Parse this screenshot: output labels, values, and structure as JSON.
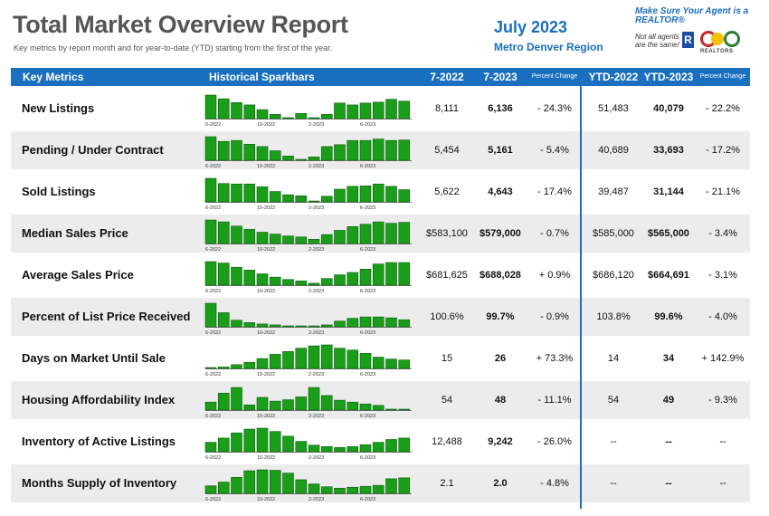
{
  "header": {
    "title": "Total Market Overview Report",
    "subtitle": "Key metrics by report month and for year-to-date (YTD) starting from the first of the year.",
    "month": "July 2023",
    "region": "Metro Denver Region"
  },
  "logo": {
    "slogan": "Make Sure Your Agent is a REALTOR®",
    "note": "Not all agents are the same!",
    "mark": "R",
    "name": "REALTORS"
  },
  "colors": {
    "accent": "#1a6fc0",
    "bar": "#1a9e1a",
    "row_shade": "#ececec"
  },
  "columns": {
    "metric": "Key Metrics",
    "sparkbars": "Historical Sparkbars",
    "cur_prev": "7-2022",
    "cur": "7-2023",
    "cur_change": "Percent Change",
    "ytd_prev": "YTD-2022",
    "ytd": "YTD-2023",
    "ytd_change": "Percent Change"
  },
  "spark_ticks": [
    "6-2022",
    "10-2022",
    "2-2023",
    "6-2023"
  ],
  "rows": [
    {
      "metric": "New Listings",
      "v2022": "8,111",
      "v2023": "6,136",
      "pct": "- 24.3%",
      "ytd2022": "51,483",
      "ytd2023": "40,079",
      "ytdpct": "- 22.2%",
      "bars": [
        1.0,
        0.84,
        0.68,
        0.58,
        0.38,
        0.18,
        0.04,
        0.22,
        0.0,
        0.18,
        0.66,
        0.58,
        0.66,
        0.7,
        0.82,
        0.74
      ]
    },
    {
      "metric": "Pending / Under Contract",
      "v2022": "5,454",
      "v2023": "5,161",
      "pct": "- 5.4%",
      "ytd2022": "40,689",
      "ytd2023": "33,693",
      "ytdpct": "- 17.2%",
      "bars": [
        1.0,
        0.8,
        0.84,
        0.68,
        0.58,
        0.4,
        0.18,
        0.02,
        0.14,
        0.58,
        0.66,
        0.84,
        0.84,
        0.9,
        0.84,
        0.86
      ]
    },
    {
      "metric": "Sold Listings",
      "v2022": "5,622",
      "v2023": "4,643",
      "pct": "- 17.4%",
      "ytd2022": "39,487",
      "ytd2023": "31,144",
      "ytdpct": "- 21.1%",
      "bars": [
        1.0,
        0.78,
        0.76,
        0.76,
        0.64,
        0.44,
        0.3,
        0.26,
        0.0,
        0.24,
        0.54,
        0.66,
        0.68,
        0.76,
        0.66,
        0.52
      ]
    },
    {
      "metric": "Median Sales Price",
      "v2022": "$583,100",
      "v2023": "$579,000",
      "pct": "- 0.7%",
      "ytd2022": "$585,000",
      "ytd2023": "$565,000",
      "ytdpct": "- 3.4%",
      "bars": [
        1.0,
        0.92,
        0.74,
        0.6,
        0.48,
        0.4,
        0.32,
        0.28,
        0.18,
        0.38,
        0.56,
        0.72,
        0.82,
        0.92,
        0.86,
        0.9
      ]
    },
    {
      "metric": "Average Sales Price",
      "v2022": "$681,625",
      "v2023": "$688,028",
      "pct": "+ 0.9%",
      "ytd2022": "$686,120",
      "ytd2023": "$664,691",
      "ytdpct": "- 3.1%",
      "bars": [
        1.0,
        0.94,
        0.76,
        0.64,
        0.48,
        0.34,
        0.24,
        0.18,
        0.08,
        0.28,
        0.44,
        0.54,
        0.68,
        0.9,
        0.96,
        0.96
      ]
    },
    {
      "metric": "Percent of List Price Received",
      "v2022": "100.6%",
      "v2023": "99.7%",
      "pct": "- 0.9%",
      "ytd2022": "103.8%",
      "ytd2023": "99.6%",
      "ytdpct": "- 4.0%",
      "bars": [
        1.0,
        0.6,
        0.28,
        0.18,
        0.12,
        0.08,
        0.04,
        0.0,
        0.0,
        0.08,
        0.24,
        0.36,
        0.42,
        0.42,
        0.38,
        0.3
      ]
    },
    {
      "metric": "Days on Market Until Sale",
      "v2022": "15",
      "v2023": "26",
      "pct": "+ 73.3%",
      "ytd2022": "14",
      "ytd2023": "34",
      "ytdpct": "+ 142.9%",
      "bars": [
        0.0,
        0.06,
        0.16,
        0.26,
        0.42,
        0.6,
        0.72,
        0.86,
        0.96,
        1.0,
        0.86,
        0.78,
        0.64,
        0.48,
        0.4,
        0.36
      ]
    },
    {
      "metric": "Housing Affordability Index",
      "v2022": "54",
      "v2023": "48",
      "pct": "- 11.1%",
      "ytd2022": "54",
      "ytd2023": "49",
      "ytdpct": "- 9.3%",
      "bars": [
        0.34,
        0.72,
        0.96,
        0.22,
        0.54,
        0.38,
        0.44,
        0.56,
        0.96,
        0.62,
        0.42,
        0.34,
        0.26,
        0.2,
        0.04,
        0.02
      ]
    },
    {
      "metric": "Inventory of Active Listings",
      "v2022": "12,488",
      "v2023": "9,242",
      "pct": "- 26.0%",
      "ytd2022": "--",
      "ytd2023": "--",
      "ytdpct": "--",
      "bars": [
        0.4,
        0.58,
        0.8,
        0.96,
        1.0,
        0.86,
        0.66,
        0.44,
        0.28,
        0.22,
        0.18,
        0.22,
        0.3,
        0.4,
        0.52,
        0.58
      ]
    },
    {
      "metric": "Months Supply of Inventory",
      "v2022": "2.1",
      "v2023": "2.0",
      "pct": "- 4.8%",
      "ytd2022": "--",
      "ytd2023": "--",
      "ytdpct": "--",
      "bars": [
        0.32,
        0.48,
        0.68,
        0.96,
        1.0,
        0.98,
        0.86,
        0.58,
        0.4,
        0.28,
        0.22,
        0.26,
        0.3,
        0.34,
        0.62,
        0.66
      ]
    }
  ]
}
